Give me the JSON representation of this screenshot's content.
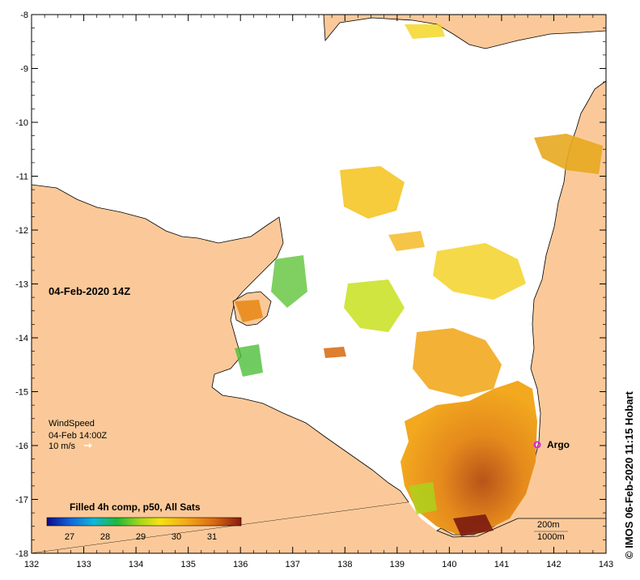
{
  "map": {
    "date_label": "04-Feb-2020 14Z",
    "lon_ticks": [
      "132",
      "133",
      "134",
      "135",
      "136",
      "137",
      "138",
      "139",
      "140",
      "141",
      "142",
      "143"
    ],
    "lat_ticks": [
      "-8",
      "-9",
      "-10",
      "-11",
      "-12",
      "-13",
      "-14",
      "-15",
      "-16",
      "-17",
      "-18"
    ],
    "wind": {
      "title": "WindSpeed",
      "time": "04-Feb 14:00Z",
      "scale": "10 m/s"
    },
    "argo_label": "Argo",
    "depth_labels": {
      "contour_200": "200m",
      "contour_1000": "1000m"
    },
    "colorbar": {
      "title": "Filled 4h comp, p50, All Sats",
      "ticks": [
        "27",
        "28",
        "29",
        "30",
        "31"
      ],
      "colors": [
        "#0b0b8a",
        "#1565d8",
        "#12b6d8",
        "#1fb83b",
        "#a8d61c",
        "#f4e412",
        "#f4a81a",
        "#d96a12",
        "#8a1a10"
      ]
    },
    "credit": "© IMOS 06-Feb-2020 11:15 Hobart",
    "colors": {
      "land": "#fbc999",
      "frame": "#000000"
    }
  }
}
